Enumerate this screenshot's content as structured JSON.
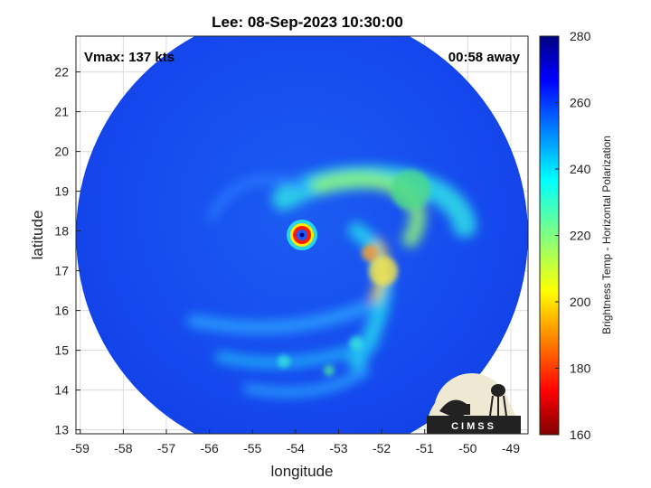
{
  "chart_data": {
    "type": "heatmap",
    "title": "Lee: 08-Sep-2023 10:30:00",
    "xlabel": "longitude",
    "ylabel": "latitude",
    "xlim": [
      -59.1,
      -48.6
    ],
    "ylim": [
      12.9,
      22.9
    ],
    "xticks": [
      -59,
      -58,
      -57,
      -56,
      -55,
      -54,
      -53,
      -52,
      -51,
      -50,
      -49
    ],
    "yticks": [
      13,
      14,
      15,
      16,
      17,
      18,
      19,
      20,
      21,
      22
    ],
    "grid": true,
    "storm_center": {
      "lon": -53.85,
      "lat": 17.9
    },
    "footprint_center": {
      "lon": -53.85,
      "lat": 17.9
    },
    "colorbar": {
      "label": "Brightness Temp - Horizontal Polarization",
      "range": [
        160,
        280
      ],
      "ticks": [
        160,
        180,
        200,
        220,
        240,
        260,
        280
      ],
      "colormap": "jet"
    },
    "annotations": {
      "vmax": "Vmax: 137 kts",
      "time_offset": "00:58 away"
    }
  },
  "logo": {
    "text": "CIMSS"
  }
}
